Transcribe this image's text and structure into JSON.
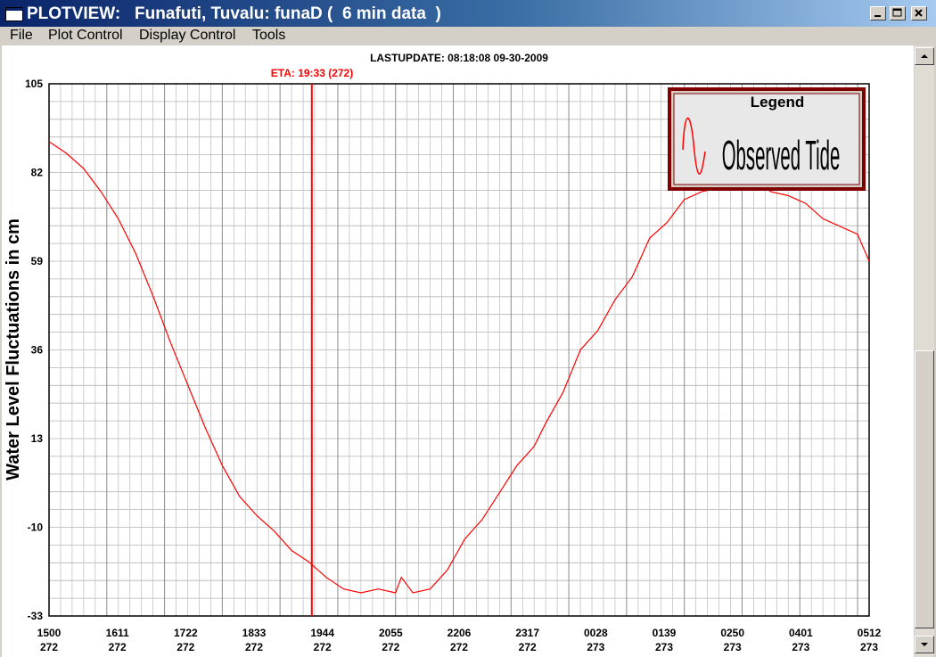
{
  "window": {
    "title": "PLOTVIEW:   Funafuti, Tuvalu: funaD (  6 min data  )"
  },
  "menu": {
    "file": "File",
    "plot_control": "Plot Control",
    "display_control": "Display Control",
    "tools": "Tools"
  },
  "colors": {
    "tide": "#ff0000",
    "eta_line": "#ff0000",
    "legend_border": "#800000",
    "grid": "#a0a0a0"
  },
  "chart_data": {
    "type": "line",
    "lastupdate": "LASTUPDATE: 08:18:08  09-30-2009",
    "eta_label": "ETA: 19:33 (272)",
    "eta_x": 4.55,
    "ylabel": "Water Level Fluctuations in cm",
    "ylim": [
      -33,
      105
    ],
    "yticks": [
      "105",
      "82",
      "59",
      "36",
      "13",
      "-10",
      "-33"
    ],
    "ytick_values": [
      105,
      82,
      59,
      36,
      13,
      -10,
      -33
    ],
    "xlim": [
      0,
      14.2
    ],
    "xticks": [
      {
        "time": "1500",
        "day": "272"
      },
      {
        "time": "1611",
        "day": "272"
      },
      {
        "time": "1722",
        "day": "272"
      },
      {
        "time": "1833",
        "day": "272"
      },
      {
        "time": "1944",
        "day": "272"
      },
      {
        "time": "2055",
        "day": "272"
      },
      {
        "time": "2206",
        "day": "272"
      },
      {
        "time": "2317",
        "day": "272"
      },
      {
        "time": "0028",
        "day": "273"
      },
      {
        "time": "0139",
        "day": "273"
      },
      {
        "time": "0250",
        "day": "273"
      },
      {
        "time": "0401",
        "day": "273"
      },
      {
        "time": "0512",
        "day": "273"
      }
    ],
    "grid": true,
    "legend": {
      "title": "Legend",
      "entry": "Observed Tide",
      "placement": "top-right"
    },
    "series": [
      {
        "name": "Observed Tide",
        "x": [
          0,
          0.3,
          0.6,
          0.9,
          1.2,
          1.5,
          1.8,
          2.1,
          2.4,
          2.7,
          3.0,
          3.3,
          3.6,
          3.9,
          4.2,
          4.5,
          4.8,
          5.1,
          5.4,
          5.7,
          6.0,
          6.1,
          6.3,
          6.6,
          6.9,
          7.2,
          7.5,
          7.8,
          8.1,
          8.4,
          8.6,
          8.9,
          9.2,
          9.5,
          9.8,
          10.1,
          10.4,
          10.7,
          11.0,
          11.3,
          11.6,
          11.9,
          12.2,
          12.5,
          12.8,
          13.1,
          13.4,
          13.7,
          14.0,
          14.2
        ],
        "values": [
          90,
          87,
          83,
          77,
          70,
          61,
          50,
          38,
          27,
          16,
          6,
          -2,
          -7,
          -11,
          -16,
          -19,
          -23,
          -26,
          -27,
          -26,
          -27,
          -23,
          -27,
          -26,
          -21,
          -13,
          -8,
          -1,
          6,
          11,
          17,
          25,
          36,
          41,
          49,
          55,
          65,
          69,
          75,
          77,
          78,
          80,
          80,
          77,
          76,
          74,
          70,
          68,
          66,
          59
        ]
      }
    ]
  }
}
